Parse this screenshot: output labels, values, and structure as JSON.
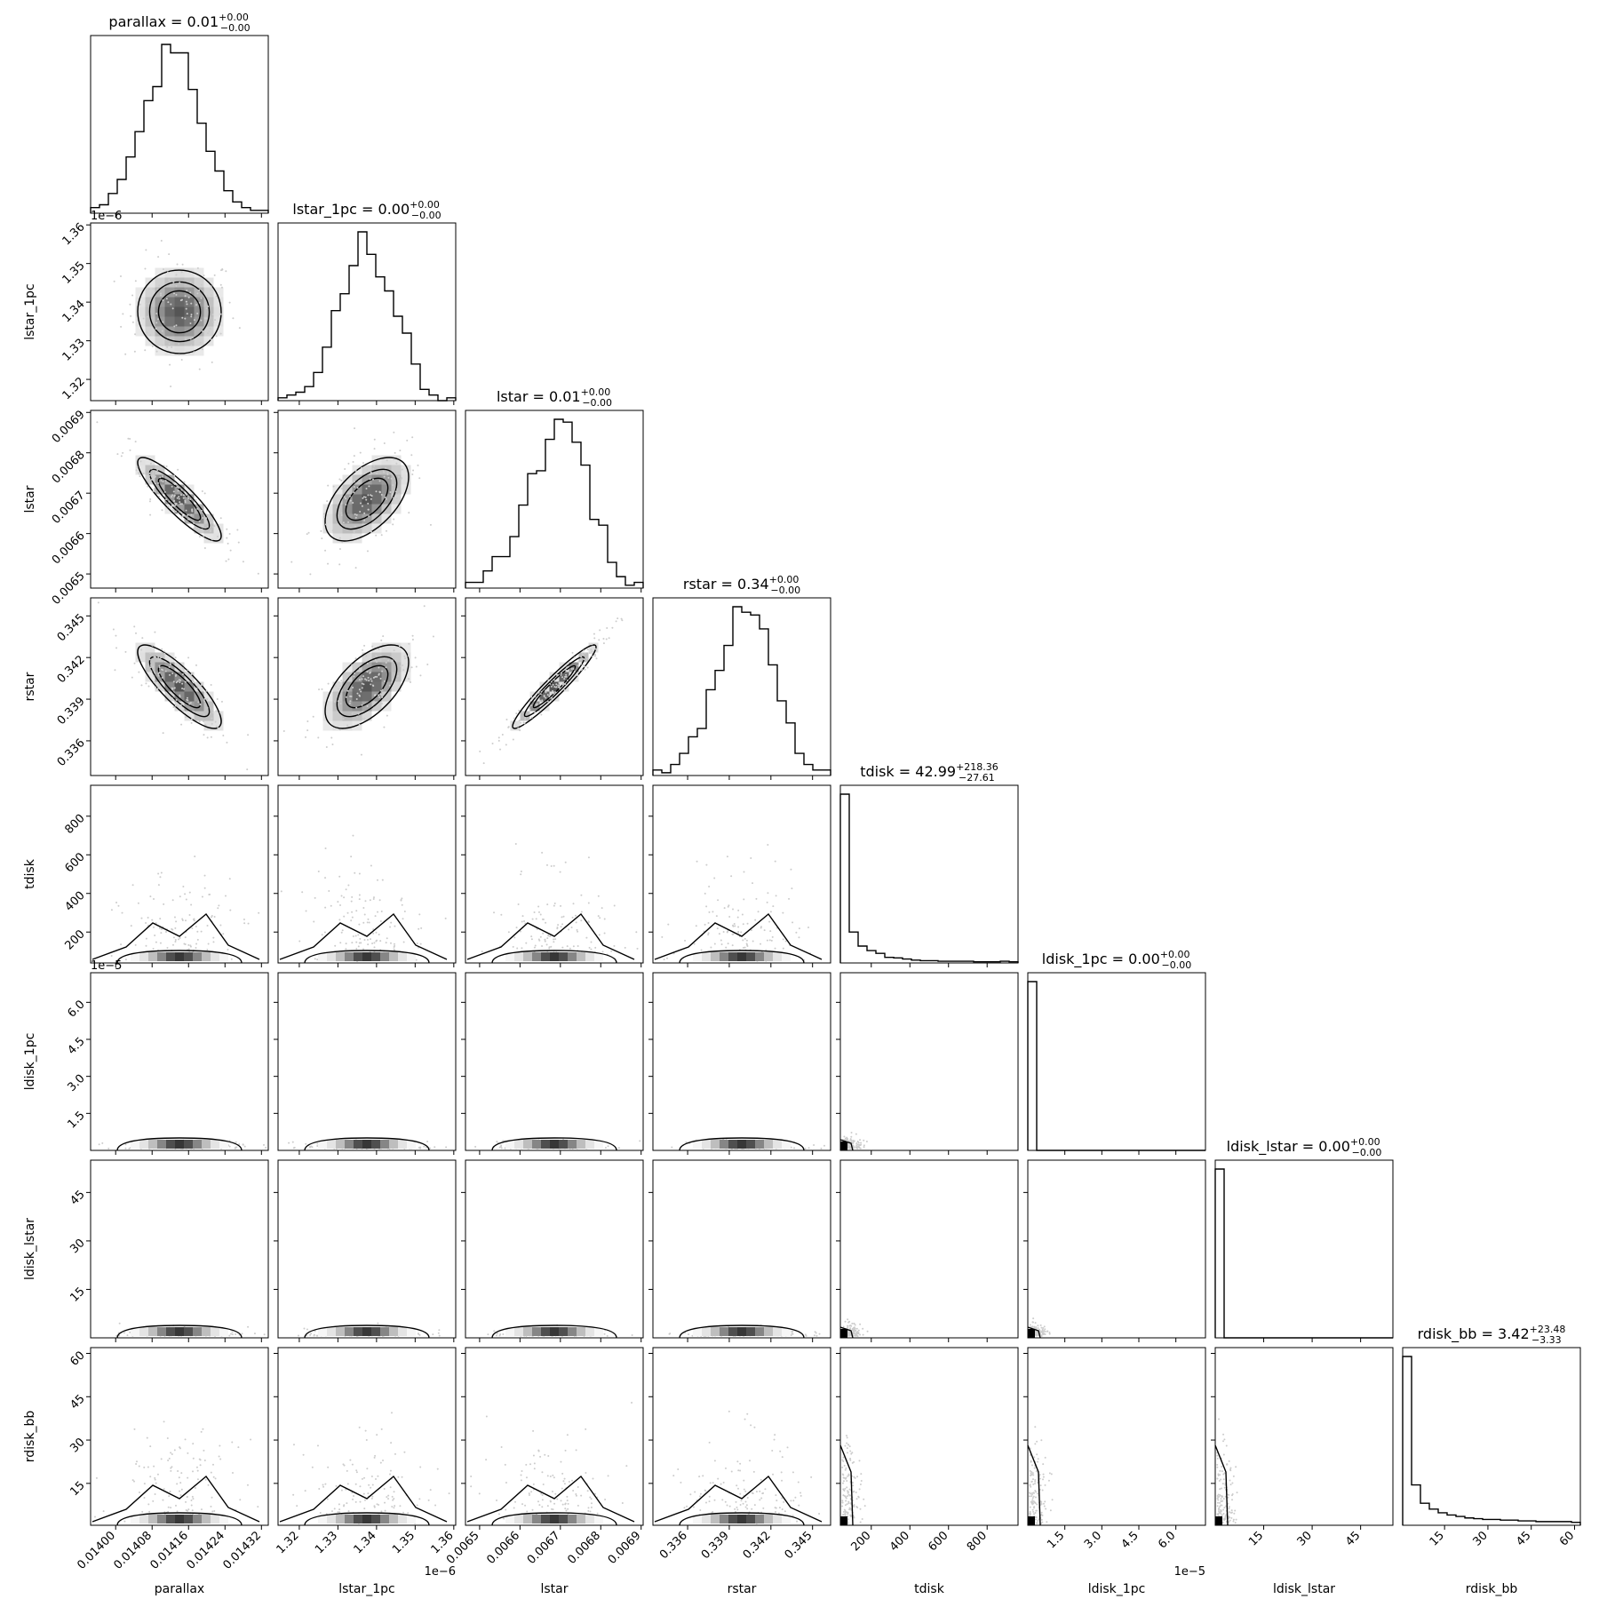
{
  "chart_data": {
    "type": "corner",
    "variables": [
      {
        "name": "parallax",
        "title": {
          "prefix": "parallax = 0.01",
          "sup": "+0.00",
          "sub": "−0.00"
        },
        "range": [
          0.013945,
          0.014335
        ],
        "ticks": [
          {
            "v": 0.014,
            "label": "0.01400"
          },
          {
            "v": 0.01408,
            "label": "0.01408"
          },
          {
            "v": 0.01416,
            "label": "0.01416"
          },
          {
            "v": 0.01424,
            "label": "0.01424"
          },
          {
            "v": 0.01432,
            "label": "0.01432"
          }
        ],
        "offset": "",
        "hist": [
          2,
          3,
          7,
          12,
          20,
          29,
          40,
          45,
          60,
          57,
          57,
          44,
          32,
          22,
          15,
          8,
          4,
          2,
          1,
          1
        ]
      },
      {
        "name": "lstar_1pc",
        "title": {
          "prefix": "lstar_1pc = 0.00",
          "sup": "+0.00",
          "sub": "−0.00"
        },
        "range": [
          1.3145,
          1.3605
        ],
        "ticks": [
          {
            "v": 1.32,
            "label": "1.32"
          },
          {
            "v": 1.33,
            "label": "1.33"
          },
          {
            "v": 1.34,
            "label": "1.34"
          },
          {
            "v": 1.35,
            "label": "1.35"
          },
          {
            "v": 1.36,
            "label": "1.36"
          }
        ],
        "offset": "1e−6",
        "hist": [
          1,
          2,
          3,
          5,
          10,
          19,
          32,
          38,
          48,
          60,
          52,
          44,
          39,
          30,
          24,
          13,
          4,
          2,
          0,
          1
        ]
      },
      {
        "name": "lstar",
        "title": {
          "prefix": "lstar = 0.01",
          "sup": "+0.00",
          "sub": "−0.00"
        },
        "range": [
          0.006465,
          0.006905
        ],
        "ticks": [
          {
            "v": 0.0065,
            "label": "0.0065"
          },
          {
            "v": 0.0066,
            "label": "0.0066"
          },
          {
            "v": 0.0067,
            "label": "0.0067"
          },
          {
            "v": 0.0068,
            "label": "0.0068"
          },
          {
            "v": 0.0069,
            "label": "0.0069"
          }
        ],
        "offset": "",
        "hist": [
          2,
          2,
          6,
          11,
          11,
          18,
          29,
          40,
          41,
          52,
          59,
          58,
          51,
          43,
          24,
          22,
          9,
          4,
          1,
          2
        ]
      },
      {
        "name": "rstar",
        "title": {
          "prefix": "rstar = 0.34",
          "sup": "+0.00",
          "sub": "−0.00"
        },
        "range": [
          0.3335,
          0.3463
        ],
        "ticks": [
          {
            "v": 0.336,
            "label": "0.336"
          },
          {
            "v": 0.339,
            "label": "0.339"
          },
          {
            "v": 0.342,
            "label": "0.342"
          },
          {
            "v": 0.345,
            "label": "0.345"
          }
        ],
        "offset": "",
        "hist": [
          2,
          1,
          4,
          8,
          14,
          17,
          31,
          38,
          47,
          61,
          59,
          58,
          53,
          40,
          27,
          19,
          8,
          4,
          2,
          2
        ]
      },
      {
        "name": "tdisk",
        "title": {
          "prefix": "tdisk = 42.99",
          "sup": "+218.36",
          "sub": "−27.61"
        },
        "range": [
          40,
          960
        ],
        "ticks": [
          {
            "v": 200,
            "label": "200"
          },
          {
            "v": 400,
            "label": "400"
          },
          {
            "v": 600,
            "label": "600"
          },
          {
            "v": 800,
            "label": "800"
          }
        ],
        "offset": "",
        "hist": [
          300,
          55,
          30,
          22,
          17,
          10,
          9,
          7,
          5,
          4,
          4,
          3,
          3,
          3,
          3,
          2,
          2,
          2,
          3,
          2
        ]
      },
      {
        "name": "ldisk_1pc",
        "title": {
          "prefix": "ldisk_1pc = 0.00",
          "sup": "+0.00",
          "sub": "−0.00"
        },
        "range": [
          0,
          7.2
        ],
        "ticks": [
          {
            "v": 1.5,
            "label": "1.5"
          },
          {
            "v": 3.0,
            "label": "3.0"
          },
          {
            "v": 4.5,
            "label": "4.5"
          },
          {
            "v": 6.0,
            "label": "6.0"
          }
        ],
        "offset": "1e−5",
        "hist": [
          500,
          0,
          0,
          0,
          0,
          0,
          0,
          0,
          0,
          0,
          0,
          0,
          0,
          0,
          0,
          0,
          0,
          0,
          0,
          0
        ]
      },
      {
        "name": "ldisk_lstar",
        "title": {
          "prefix": "ldisk_lstar = 0.00",
          "sup": "+0.00",
          "sub": "−0.00"
        },
        "range": [
          0,
          55
        ],
        "ticks": [
          {
            "v": 15,
            "label": "15"
          },
          {
            "v": 30,
            "label": "30"
          },
          {
            "v": 45,
            "label": "45"
          }
        ],
        "offset": "",
        "hist": [
          500,
          0,
          0,
          0,
          0,
          0,
          0,
          0,
          0,
          0,
          0,
          0,
          0,
          0,
          0,
          0,
          0,
          0,
          0,
          0
        ]
      },
      {
        "name": "rdisk_bb",
        "title": {
          "prefix": "rdisk_bb = 3.42",
          "sup": "+23.48",
          "sub": "−3.33"
        },
        "range": [
          0.5,
          62
        ],
        "ticks": [
          {
            "v": 15,
            "label": "15"
          },
          {
            "v": 30,
            "label": "30"
          },
          {
            "v": 45,
            "label": "45"
          },
          {
            "v": 60,
            "label": "60"
          }
        ],
        "offset": "",
        "hist": [
          230,
          55,
          30,
          22,
          17,
          14,
          12,
          10,
          9,
          8,
          8,
          7,
          7,
          6,
          6,
          5,
          5,
          5,
          5,
          4
        ]
      }
    ],
    "y_offsets": {
      "lstar_1pc": "1e−6",
      "ldisk_1pc": "1e−5"
    },
    "tdisk_y_ticks": [
      {
        "v": 200,
        "label": "200"
      },
      {
        "v": 400,
        "label": "400"
      },
      {
        "v": 600,
        "label": "600"
      },
      {
        "v": 800,
        "label": "800"
      }
    ],
    "ldisk_1pc_y_ticks": [
      {
        "v": 1.5,
        "label": "1.5"
      },
      {
        "v": 3.0,
        "label": "3.0"
      },
      {
        "v": 4.5,
        "label": "4.5"
      },
      {
        "v": 6.0,
        "label": "6.0"
      }
    ],
    "ldisk_lstar_y_ticks": [
      {
        "v": 15,
        "label": "15"
      },
      {
        "v": 30,
        "label": "30"
      },
      {
        "v": 45,
        "label": "45"
      }
    ],
    "rdisk_bb_y_ticks": [
      {
        "v": 15,
        "label": "15"
      },
      {
        "v": 30,
        "label": "30"
      },
      {
        "v": 45,
        "label": "45"
      },
      {
        "v": 60,
        "label": "60"
      }
    ]
  }
}
